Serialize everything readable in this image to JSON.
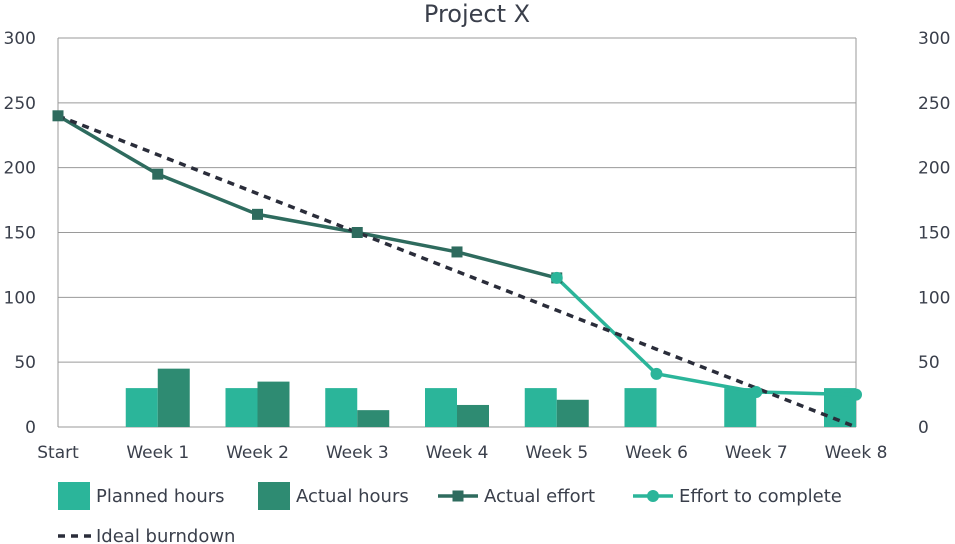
{
  "chart_data": {
    "type": "bar",
    "title": "Project X",
    "categories": [
      "Start",
      "Week 1",
      "Week 2",
      "Week 3",
      "Week 4",
      "Week 5",
      "Week 6",
      "Week 7",
      "Week 8"
    ],
    "ylim": [
      0,
      300
    ],
    "y_ticks": [
      0,
      50,
      100,
      150,
      200,
      250,
      300
    ],
    "y_tick_labels": [
      "0",
      "50",
      "100",
      "150",
      "200",
      "250",
      "300"
    ],
    "secondary_y_ticks": [
      0,
      50,
      100,
      150,
      200,
      250,
      300
    ],
    "secondary_y_tick_labels": [
      "0",
      "50",
      "100",
      "150",
      "200",
      "250",
      "300"
    ],
    "grid": true,
    "legend_position": "bottom",
    "series": [
      {
        "name": "Planned hours",
        "type": "bar",
        "color": "#2bb59a",
        "values": [
          null,
          30,
          30,
          30,
          30,
          30,
          30,
          30,
          30
        ]
      },
      {
        "name": "Actual hours",
        "type": "bar",
        "color": "#2e8b72",
        "values": [
          null,
          45,
          35,
          13,
          17,
          21,
          null,
          null,
          null
        ]
      },
      {
        "name": "Actual effort",
        "type": "line",
        "marker": "square",
        "color": "#2e6b5e",
        "values": [
          240,
          195,
          164,
          150,
          135,
          115,
          null,
          null,
          null
        ]
      },
      {
        "name": "Effort to complete",
        "type": "line",
        "marker": "circle",
        "color": "#2bb59a",
        "values": [
          null,
          null,
          null,
          null,
          null,
          115,
          41,
          27,
          25
        ]
      },
      {
        "name": "Ideal burndown",
        "type": "line",
        "dash": "dotted",
        "color": "#2a2d3a",
        "values": [
          240,
          210,
          180,
          150,
          120,
          90,
          60,
          30,
          0
        ]
      }
    ]
  }
}
